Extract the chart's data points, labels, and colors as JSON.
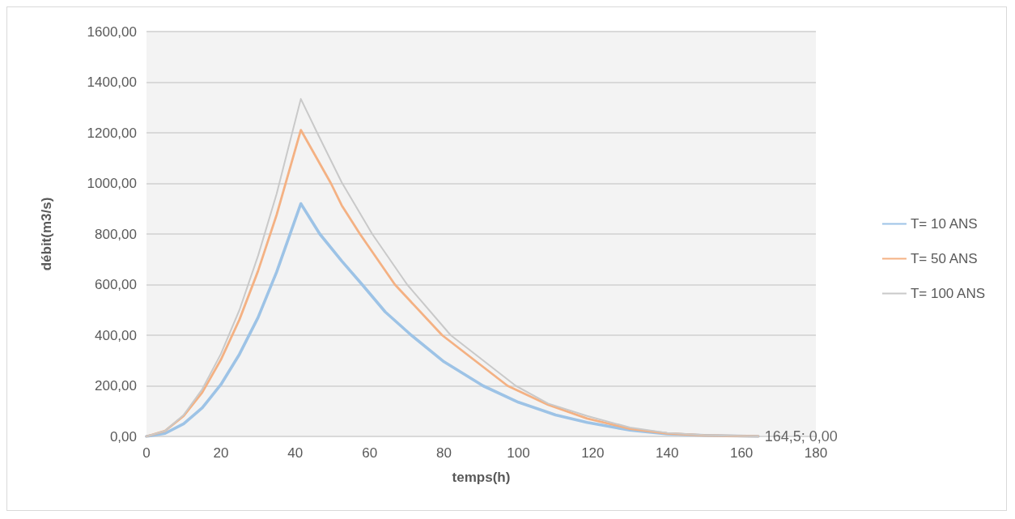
{
  "chart_data": {
    "type": "line",
    "xlabel": "temps(h)",
    "ylabel": "débit(m3/s)",
    "xlim": [
      0,
      180
    ],
    "xticks": [
      0,
      20,
      40,
      60,
      80,
      100,
      120,
      140,
      160,
      180
    ],
    "ylim": [
      0,
      1600
    ],
    "yticks": [
      {
        "value": 0,
        "label": "0,00"
      },
      {
        "value": 200,
        "label": "200,00"
      },
      {
        "value": 400,
        "label": "400,00"
      },
      {
        "value": 600,
        "label": "600,00"
      },
      {
        "value": 800,
        "label": "800,00"
      },
      {
        "value": 1000,
        "label": "1000,00"
      },
      {
        "value": 1200,
        "label": "1200,00"
      },
      {
        "value": 1400,
        "label": "1400,00"
      },
      {
        "value": 1600,
        "label": "1600,00"
      }
    ],
    "grid": "y",
    "legend": "right",
    "marker": "none",
    "line_style": "solid",
    "annotations": [
      {
        "text": "164,5; 0,00",
        "x": 164.5,
        "y": 0
      }
    ],
    "series": [
      {
        "name": "T= 10 ANS",
        "color": "#9dc3e6",
        "x": [
          0,
          5,
          10,
          15,
          20,
          25,
          30,
          35,
          41.5,
          46.6,
          52.5,
          58,
          64.2,
          71.2,
          80,
          90.5,
          100,
          110,
          118.5,
          130,
          140,
          150,
          164.5
        ],
        "values": [
          0,
          12,
          50,
          113,
          205,
          325,
          470,
          650,
          920,
          800,
          693,
          600,
          492,
          400,
          295,
          200,
          135,
          85,
          55,
          25,
          10,
          4,
          0
        ]
      },
      {
        "name": "T= 50 ANS",
        "color": "#f4b183",
        "x": [
          0,
          5,
          10,
          15,
          20,
          25,
          30,
          35,
          41.5,
          49.6,
          52.5,
          57.4,
          66.8,
          79.5,
          97.1,
          108,
          118.5,
          130,
          140,
          150,
          164.5
        ],
        "values": [
          0,
          22,
          81,
          174,
          303,
          462,
          654,
          876,
          1211,
          1000,
          913,
          800,
          600,
          400,
          200,
          125,
          71,
          30,
          12,
          4,
          0
        ]
      },
      {
        "name": "T= 100 ANS",
        "color": "#c9c9c9",
        "x": [
          0,
          5,
          10,
          15,
          20,
          25,
          30,
          35,
          41.5,
          45.9,
          52.5,
          60.7,
          70.1,
          81.8,
          99.3,
          108,
          118.5,
          130,
          140,
          150,
          164.5
        ],
        "values": [
          0,
          22,
          85,
          187,
          326,
          500,
          714,
          959,
          1334,
          1200,
          1004,
          800,
          600,
          400,
          200,
          130,
          81,
          35,
          14,
          5,
          0
        ]
      }
    ]
  }
}
